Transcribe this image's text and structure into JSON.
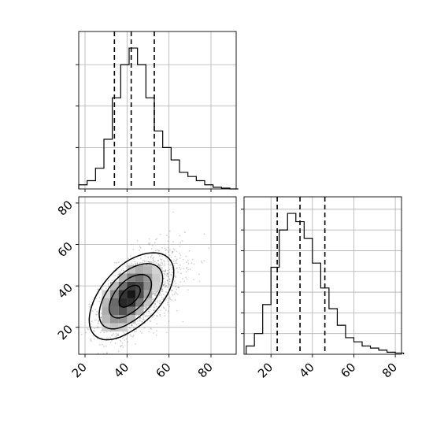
{
  "chart_data": [
    {
      "type": "histogram",
      "panel": "top-left",
      "parameter_index": 0,
      "x_range": [
        17,
        92
      ],
      "bin_edges": [
        17,
        21,
        25,
        29,
        33,
        37,
        41,
        45,
        49,
        53,
        57,
        61,
        65,
        69,
        73,
        77,
        81,
        85,
        89,
        93
      ],
      "counts": [
        1,
        2,
        5,
        12,
        22,
        30,
        34,
        30,
        22,
        14,
        10,
        7,
        4,
        3,
        2,
        1,
        0.4,
        0.2,
        0
      ],
      "quantile_lines": [
        34,
        42,
        53
      ],
      "y_max": 38,
      "grid": true,
      "x_tick_values": [
        20,
        40,
        60,
        80
      ],
      "y_tick_values": [
        10,
        20,
        30
      ]
    },
    {
      "type": "scatter_density",
      "panel": "bottom-left",
      "x_range": [
        17,
        92
      ],
      "y_range": [
        7,
        83
      ],
      "x_ticks": [
        20,
        40,
        60,
        80
      ],
      "y_ticks": [
        20,
        40,
        60,
        80
      ],
      "x_tick_labels": [
        "20",
        "40",
        "60",
        "80"
      ],
      "y_tick_labels": [
        "20",
        "40",
        "60",
        "80"
      ],
      "grid": true,
      "distribution": {
        "mean": [
          44,
          36
        ],
        "sd": [
          9.5,
          10.5
        ],
        "correlation": 0.55,
        "n_points": 1800
      },
      "contour_levels_sigma": [
        0.5,
        1.0,
        1.5,
        2.0
      ],
      "density_peak": [
        41,
        35
      ]
    },
    {
      "type": "histogram",
      "panel": "bottom-right",
      "parameter_index": 1,
      "x_range": [
        7,
        83
      ],
      "bin_edges": [
        8,
        12,
        16,
        20,
        24,
        28,
        32,
        36,
        40,
        44,
        48,
        52,
        56,
        60,
        64,
        68,
        72,
        76,
        80,
        84
      ],
      "counts": [
        2,
        5,
        12,
        21,
        30,
        34,
        32,
        28,
        22,
        16,
        11,
        7,
        4,
        3,
        2,
        1.5,
        1,
        0.5,
        0.3
      ],
      "quantile_lines": [
        23,
        34,
        46
      ],
      "y_max": 38,
      "grid": true,
      "x_ticks": [
        20,
        40,
        60,
        80
      ],
      "x_tick_labels": [
        "20",
        "40",
        "60",
        "80"
      ],
      "y_tick_values": [
        5,
        10,
        15,
        20,
        25,
        30,
        35
      ]
    }
  ],
  "colors": {
    "line": "#000000",
    "grid": "#b0b0b0",
    "scatter_point": "#808080",
    "axes_background": "#ffffff"
  }
}
